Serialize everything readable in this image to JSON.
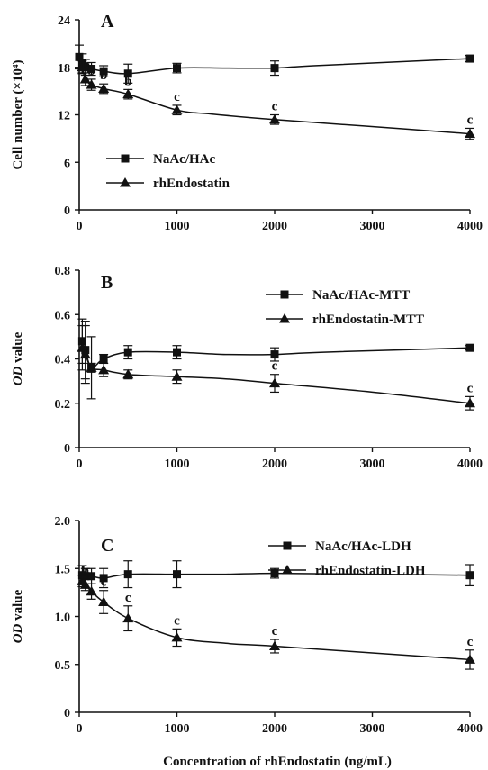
{
  "chart_data": [
    {
      "type": "line",
      "panel": "A",
      "ylabel": "Cell number (×10⁴)",
      "xlim": [
        0,
        4000
      ],
      "ylim": [
        0,
        24
      ],
      "xticks": [
        "0",
        "1000",
        "2000",
        "3000",
        "4000"
      ],
      "yticks": [
        "0",
        "6",
        "12",
        "18",
        "24"
      ],
      "legend_position": "lower-left",
      "series": [
        {
          "name": "NaAc/HAc",
          "marker": "square",
          "x": [
            0,
            31.25,
            62.5,
            125,
            250,
            500,
            1000,
            2000,
            4000
          ],
          "y": [
            19.3,
            18.5,
            18.0,
            17.8,
            17.5,
            17.2,
            17.9,
            17.9,
            19.1
          ],
          "err": [
            1.5,
            1.2,
            1.0,
            0.8,
            0.7,
            1.2,
            0.6,
            0.9,
            0.4
          ],
          "labels": [
            "",
            "",
            "",
            "",
            "",
            "",
            "",
            "",
            ""
          ]
        },
        {
          "name": "rhEndostatin",
          "marker": "triangle",
          "x": [
            31.25,
            62.5,
            125,
            250,
            500,
            1000,
            2000,
            4000
          ],
          "y": [
            18.0,
            16.5,
            15.8,
            15.3,
            14.6,
            12.6,
            11.4,
            9.6
          ],
          "err": [
            0.8,
            0.8,
            0.7,
            0.6,
            0.6,
            0.6,
            0.6,
            0.7
          ],
          "labels": [
            "",
            "b",
            "b",
            "b",
            "b",
            "c",
            "c",
            "c"
          ]
        }
      ],
      "curve_mid": [
        {
          "series": 0,
          "x": [
            1500,
            2400
          ],
          "y": [
            17.9,
            18.2
          ]
        },
        {
          "series": 1,
          "x": [
            1350,
            2900
          ],
          "y": [
            12.1,
            10.6
          ]
        }
      ]
    },
    {
      "type": "line",
      "panel": "B",
      "ylabel": "OD value",
      "ylabel_italic": "OD",
      "ylabel_rest": " value",
      "xlim": [
        0,
        4000
      ],
      "ylim": [
        0,
        0.8
      ],
      "xticks": [
        "0",
        "1000",
        "2000",
        "3000",
        "4000"
      ],
      "yticks": [
        "0",
        "0.2",
        "0.4",
        "0.6",
        "0.8"
      ],
      "legend_position": "top-right",
      "series": [
        {
          "name": "NaAc/HAc-MTT",
          "marker": "square",
          "x": [
            31.25,
            62.5,
            125,
            250,
            500,
            1000,
            2000,
            4000
          ],
          "y": [
            0.48,
            0.44,
            0.36,
            0.4,
            0.43,
            0.43,
            0.42,
            0.45
          ],
          "err": [
            0.1,
            0.13,
            0.14,
            0.02,
            0.03,
            0.03,
            0.03,
            0.01
          ],
          "labels": [
            "",
            "",
            "",
            "",
            "",
            "",
            "",
            ""
          ]
        },
        {
          "name": "rhEndostatin-MTT",
          "marker": "triangle",
          "x": [
            31.25,
            62.5,
            125,
            250,
            500,
            1000,
            2000,
            4000
          ],
          "y": [
            0.45,
            0.42,
            0.36,
            0.35,
            0.33,
            0.32,
            0.29,
            0.2
          ],
          "err": [
            0.1,
            0.13,
            0.02,
            0.03,
            0.02,
            0.03,
            0.04,
            0.03
          ],
          "labels": [
            "",
            "",
            "",
            "",
            "",
            "",
            "c",
            "c"
          ]
        }
      ],
      "curve_mid": [
        {
          "series": 0,
          "x": [
            1500,
            2500
          ],
          "y": [
            0.42,
            0.43
          ]
        },
        {
          "series": 1,
          "x": [
            1500,
            3000
          ],
          "y": [
            0.31,
            0.25
          ]
        }
      ]
    },
    {
      "type": "line",
      "panel": "C",
      "ylabel": "OD value",
      "ylabel_italic": "OD",
      "ylabel_rest": " value",
      "xlim": [
        0,
        4000
      ],
      "ylim": [
        0,
        2.0
      ],
      "xticks": [
        "0",
        "1000",
        "2000",
        "3000",
        "4000"
      ],
      "yticks": [
        "0",
        "0.5",
        "1.0",
        "1.5",
        "2.0"
      ],
      "legend_position": "top-right",
      "series": [
        {
          "name": "NaAc/HAc-LDH",
          "marker": "square",
          "x": [
            31.25,
            62.5,
            125,
            250,
            500,
            1000,
            2000,
            4000
          ],
          "y": [
            1.43,
            1.42,
            1.42,
            1.4,
            1.44,
            1.44,
            1.45,
            1.43
          ],
          "err": [
            0.1,
            0.08,
            0.08,
            0.1,
            0.14,
            0.14,
            0.05,
            0.11
          ],
          "labels": [
            "",
            "",
            "",
            "",
            "",
            "",
            "",
            ""
          ]
        },
        {
          "name": "rhEndostatin-LDH",
          "marker": "triangle",
          "x": [
            31.25,
            62.5,
            125,
            250,
            500,
            1000,
            2000,
            4000
          ],
          "y": [
            1.37,
            1.33,
            1.26,
            1.15,
            0.98,
            0.78,
            0.69,
            0.55
          ],
          "err": [
            0.06,
            0.06,
            0.08,
            0.12,
            0.13,
            0.09,
            0.07,
            0.1
          ],
          "labels": [
            "",
            "b",
            "c",
            "c",
            "c",
            "c",
            "c",
            "c"
          ]
        }
      ],
      "curve_mid": [
        {
          "series": 0,
          "x": [
            1500,
            3000
          ],
          "y": [
            1.44,
            1.44
          ]
        },
        {
          "series": 1,
          "x": [
            1500,
            3000
          ],
          "y": [
            0.72,
            0.62
          ]
        }
      ]
    }
  ],
  "xlabel": "Concentration of rhEndostatin (ng/mL)"
}
